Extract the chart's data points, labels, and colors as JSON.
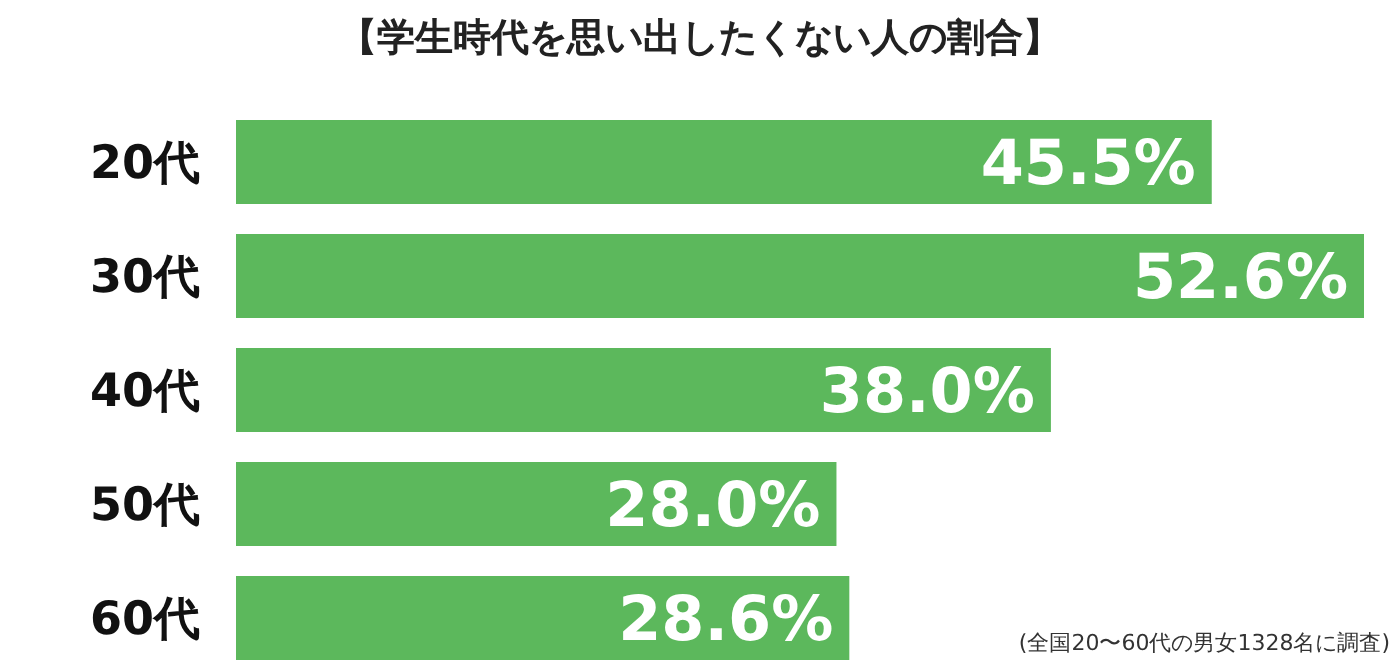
{
  "chart_data": {
    "type": "bar",
    "orientation": "horizontal",
    "title": "【学生時代を思い出したくない人の割合】",
    "categories": [
      "20代",
      "30代",
      "40代",
      "50代",
      "60代"
    ],
    "values": [
      45.5,
      52.6,
      38.0,
      28.0,
      28.6
    ],
    "value_labels": [
      "45.5%",
      "52.6%",
      "38.0%",
      "28.0%",
      "28.6%"
    ],
    "color": "#5cb85c",
    "annotations": [
      "(全国20〜60代の男女1328名に調査)"
    ]
  }
}
